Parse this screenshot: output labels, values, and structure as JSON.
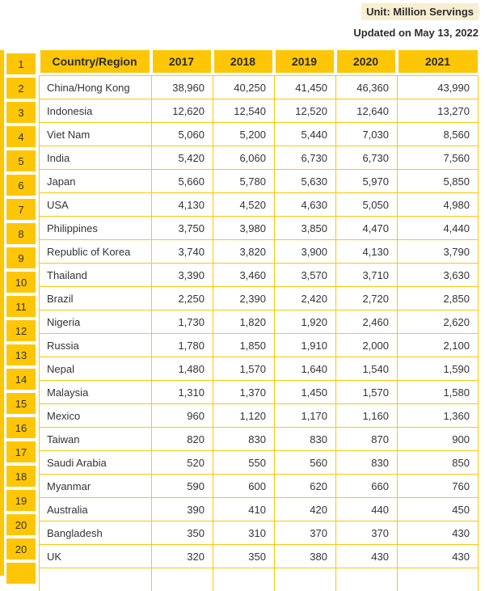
{
  "page": {
    "unit_label": "Unit: Million Servings",
    "updated_label": "Updated on May 13, 2022"
  },
  "colors": {
    "accent_gold": "#ffc607",
    "unit_chip_background": "#f8eed0",
    "text": "#333333"
  },
  "chart_data": {
    "type": "table",
    "unit": "Million Servings",
    "updated": "Updated on May 13, 2022",
    "columns": [
      "",
      "Country/Region",
      "2017",
      "2018",
      "2019",
      "2020",
      "2021"
    ],
    "rows": [
      {
        "rank": "1",
        "country": "China/Hong Kong",
        "values": [
          "38,960",
          "40,250",
          "41,450",
          "46,360",
          "43,990"
        ]
      },
      {
        "rank": "2",
        "country": "Indonesia",
        "values": [
          "12,620",
          "12,540",
          "12,520",
          "12,640",
          "13,270"
        ]
      },
      {
        "rank": "3",
        "country": "Viet Nam",
        "values": [
          "5,060",
          "5,200",
          "5,440",
          "7,030",
          "8,560"
        ]
      },
      {
        "rank": "4",
        "country": "India",
        "values": [
          "5,420",
          "6,060",
          "6,730",
          "6,730",
          "7,560"
        ]
      },
      {
        "rank": "5",
        "country": "Japan",
        "values": [
          "5,660",
          "5,780",
          "5,630",
          "5,970",
          "5,850"
        ]
      },
      {
        "rank": "6",
        "country": "USA",
        "values": [
          "4,130",
          "4,520",
          "4,630",
          "5,050",
          "4,980"
        ]
      },
      {
        "rank": "7",
        "country": "Philippines",
        "values": [
          "3,750",
          "3,980",
          "3,850",
          "4,470",
          "4,440"
        ]
      },
      {
        "rank": "8",
        "country": "Republic of Korea",
        "values": [
          "3,740",
          "3,820",
          "3,900",
          "4,130",
          "3,790"
        ]
      },
      {
        "rank": "9",
        "country": "Thailand",
        "values": [
          "3,390",
          "3,460",
          "3,570",
          "3,710",
          "3,630"
        ]
      },
      {
        "rank": "10",
        "country": "Brazil",
        "values": [
          "2,250",
          "2,390",
          "2,420",
          "2,720",
          "2,850"
        ]
      },
      {
        "rank": "11",
        "country": "Nigeria",
        "values": [
          "1,730",
          "1,820",
          "1,920",
          "2,460",
          "2,620"
        ]
      },
      {
        "rank": "12",
        "country": "Russia",
        "values": [
          "1,780",
          "1,850",
          "1,910",
          "2,000",
          "2,100"
        ]
      },
      {
        "rank": "13",
        "country": "Nepal",
        "values": [
          "1,480",
          "1,570",
          "1,640",
          "1,540",
          "1,590"
        ]
      },
      {
        "rank": "14",
        "country": "Malaysia",
        "values": [
          "1,310",
          "1,370",
          "1,450",
          "1,570",
          "1,580"
        ]
      },
      {
        "rank": "15",
        "country": "Mexico",
        "values": [
          "960",
          "1,120",
          "1,170",
          "1,160",
          "1,360"
        ]
      },
      {
        "rank": "16",
        "country": "Taiwan",
        "values": [
          "820",
          "830",
          "830",
          "870",
          "900"
        ]
      },
      {
        "rank": "17",
        "country": "Saudi Arabia",
        "values": [
          "520",
          "550",
          "560",
          "830",
          "850"
        ]
      },
      {
        "rank": "18",
        "country": "Myanmar",
        "values": [
          "590",
          "600",
          "620",
          "660",
          "760"
        ]
      },
      {
        "rank": "19",
        "country": "Australia",
        "values": [
          "390",
          "410",
          "420",
          "440",
          "450"
        ]
      },
      {
        "rank": "20",
        "country": "Bangladesh",
        "values": [
          "350",
          "310",
          "370",
          "370",
          "430"
        ]
      },
      {
        "rank": "20",
        "country": "UK",
        "values": [
          "320",
          "350",
          "380",
          "430",
          "430"
        ]
      }
    ]
  }
}
